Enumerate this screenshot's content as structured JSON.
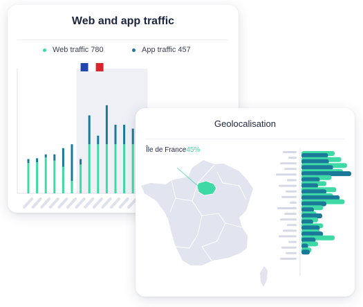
{
  "traffic_card": {
    "title": "Web and app traffic",
    "legend": [
      {
        "label": "Web traffic 780",
        "color": "#3fd9a5"
      },
      {
        "label": "App traffic 457",
        "color": "#1a7898"
      }
    ],
    "flag_icon": "french-flag-icon"
  },
  "geo_card": {
    "title": "Geolocalisation",
    "region_name": "Île de France",
    "region_percent": "45%",
    "highlight_color": "#3fd9a5"
  },
  "colors": {
    "web": "#3fd9a5",
    "app": "#1a7898",
    "map": "#e2e4ef",
    "grey_bar": "#d5d9e6"
  },
  "chart_data": [
    {
      "type": "bar",
      "stacked": true,
      "title": "Web and app traffic",
      "series": [
        {
          "name": "Web traffic",
          "values": [
            0.39,
            0.4,
            0.46,
            0.42,
            0.34,
            0.16,
            0.37,
            0.63,
            0.63,
            0.63,
            0.63,
            0.63,
            0.63,
            0.63,
            0.63
          ]
        },
        {
          "name": "App traffic",
          "values": [
            0.05,
            0.05,
            0.04,
            0.08,
            0.24,
            0.47,
            0.07,
            0.37,
            0.11,
            0.5,
            0.25,
            0.25,
            0.2,
            0.11,
            0.11
          ]
        }
      ],
      "highlighted_range": [
        6,
        13
      ],
      "ylim": [
        0,
        1.6
      ]
    },
    {
      "type": "bar",
      "orientation": "horizontal",
      "series": [
        {
          "name": "Web traffic",
          "values": [
            0.4,
            0.48,
            0.55,
            0.5,
            0.36,
            0.3,
            0.42,
            0.38,
            0.52,
            0.26,
            0.18,
            0.2,
            0.26,
            0.22,
            0.4,
            0.2,
            0.12
          ]
        },
        {
          "name": "App traffic",
          "values": [
            0.32,
            0.33,
            0.38,
            0.6,
            0.22,
            0.2,
            0.3,
            0.46,
            0.3,
            0.15,
            0.25,
            0.14,
            0.22,
            0.26,
            0.17,
            0.08,
            0.1
          ]
        }
      ]
    }
  ]
}
